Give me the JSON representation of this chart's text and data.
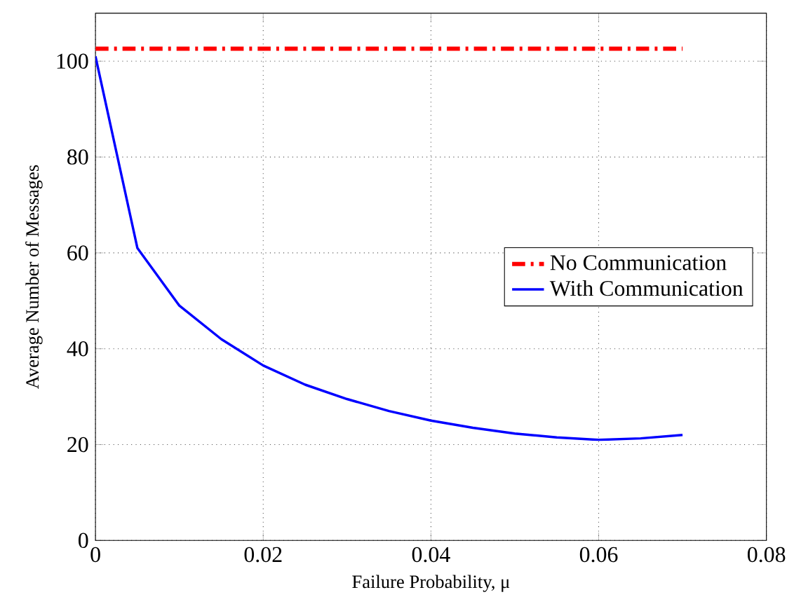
{
  "chart_data": {
    "type": "line",
    "xlabel": "Failure Probability, μ",
    "ylabel": "Average Number of Messages",
    "xlim": [
      0,
      0.08
    ],
    "ylim": [
      0,
      110
    ],
    "xticks": [
      0,
      0.02,
      0.04,
      0.06,
      0.08
    ],
    "yticks": [
      0,
      20,
      40,
      60,
      80,
      100
    ],
    "grid": true,
    "legend": "right",
    "series": [
      {
        "name": "No Communication",
        "color": "#ff0000",
        "line_style": "dashdot",
        "x": [
          0,
          0.07
        ],
        "values": [
          102.6,
          102.6
        ]
      },
      {
        "name": "With Communication",
        "color": "#0000ff",
        "line_style": "solid",
        "x": [
          0,
          0.005,
          0.01,
          0.015,
          0.02,
          0.025,
          0.03,
          0.035,
          0.04,
          0.045,
          0.05,
          0.055,
          0.06,
          0.065,
          0.07
        ],
        "values": [
          101,
          61,
          49,
          42,
          36.5,
          32.5,
          29.5,
          27,
          25,
          23.5,
          22.3,
          21.5,
          21,
          21.3,
          22
        ]
      }
    ]
  }
}
